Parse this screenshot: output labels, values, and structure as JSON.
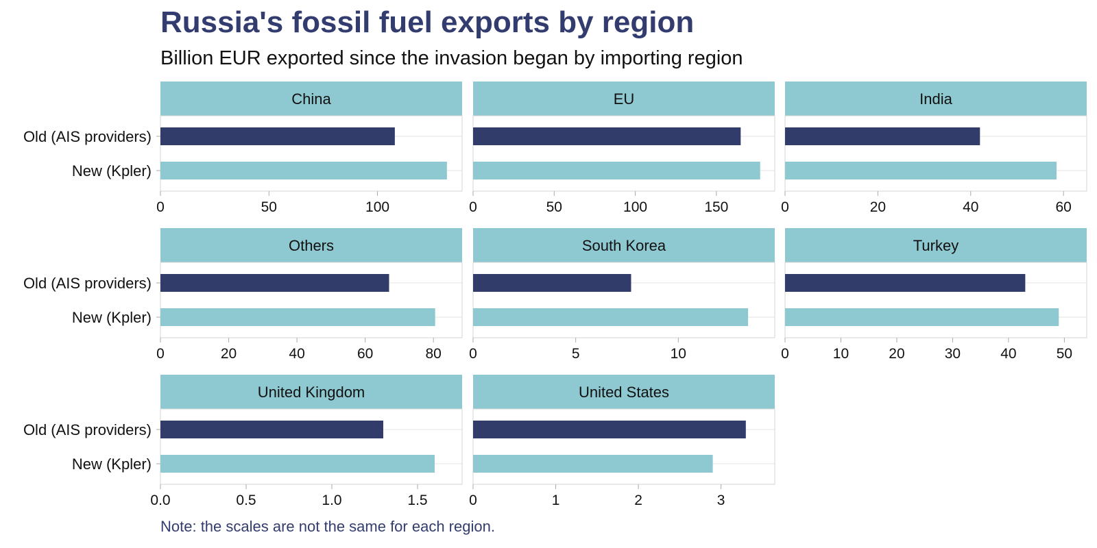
{
  "header": {
    "title": "Russia's fossil fuel exports by region",
    "subtitle": "Billion EUR exported since the invasion began by importing region"
  },
  "footer": {
    "note": "Note: the scales are not the same for each region."
  },
  "colors": {
    "strip": "#8ec8d0",
    "old_bar": "#323c6b",
    "new_bar": "#8ec8d0",
    "grid": "#e3e3e3",
    "border": "#d6d6d6",
    "title": "#323c6e"
  },
  "chart_data": {
    "type": "bar",
    "orientation": "horizontal",
    "facet": true,
    "scales": "free_x",
    "unit": "Billion EUR",
    "categories": [
      "Old (AIS providers)",
      "New (Kpler)"
    ],
    "panels": [
      {
        "name": "China",
        "values": [
          108,
          132
        ],
        "xlim": [
          0,
          139
        ],
        "ticks": [
          0,
          50,
          100
        ],
        "tick_labels": [
          "0",
          "50",
          "100"
        ]
      },
      {
        "name": "EU",
        "values": [
          165,
          177
        ],
        "xlim": [
          0,
          186
        ],
        "ticks": [
          0,
          50,
          100,
          150
        ],
        "tick_labels": [
          "0",
          "50",
          "100",
          "150"
        ]
      },
      {
        "name": "India",
        "values": [
          42,
          58.5
        ],
        "xlim": [
          0,
          65
        ],
        "ticks": [
          0,
          20,
          40,
          60
        ],
        "tick_labels": [
          "0",
          "20",
          "40",
          "60"
        ]
      },
      {
        "name": "Others",
        "values": [
          67,
          80.5
        ],
        "xlim": [
          0,
          88.4
        ],
        "ticks": [
          0,
          20,
          40,
          60,
          80
        ],
        "tick_labels": [
          "0",
          "20",
          "40",
          "60",
          "80"
        ]
      },
      {
        "name": "South Korea",
        "values": [
          7.7,
          13.4
        ],
        "xlim": [
          0,
          14.7
        ],
        "ticks": [
          0,
          5,
          10
        ],
        "tick_labels": [
          "0",
          "5",
          "10"
        ]
      },
      {
        "name": "Turkey",
        "values": [
          43,
          49
        ],
        "xlim": [
          0,
          54
        ],
        "ticks": [
          0,
          10,
          20,
          30,
          40,
          50
        ],
        "tick_labels": [
          "0",
          "10",
          "20",
          "30",
          "40",
          "50"
        ]
      },
      {
        "name": "United Kingdom",
        "values": [
          1.3,
          1.6
        ],
        "xlim": [
          0,
          1.76
        ],
        "ticks": [
          0,
          0.5,
          1.0,
          1.5
        ],
        "tick_labels": [
          "0.0",
          "0.5",
          "1.0",
          "1.5"
        ]
      },
      {
        "name": "United States",
        "values": [
          3.3,
          2.9
        ],
        "xlim": [
          0,
          3.65
        ],
        "ticks": [
          0,
          1,
          2,
          3
        ],
        "tick_labels": [
          "0",
          "1",
          "2",
          "3"
        ]
      }
    ]
  }
}
